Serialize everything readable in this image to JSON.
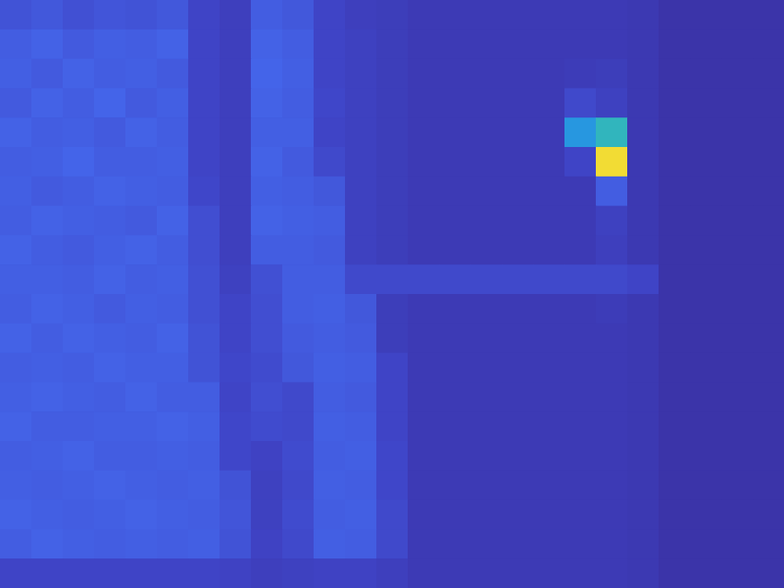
{
  "chart_data": {
    "type": "heatmap",
    "tick_labels": false,
    "color_range": [
      0,
      1
    ],
    "cells": [
      [
        0.16,
        0.18,
        0.15,
        0.17,
        0.16,
        0.18,
        0.1,
        0.07,
        0.2,
        0.18,
        0.1,
        0.07,
        0.06,
        0.04,
        0.04,
        0.04,
        0.04,
        0.04,
        0.04,
        0.04,
        0.03,
        0,
        0,
        0,
        0
      ],
      [
        0.2,
        0.22,
        0.19,
        0.21,
        0.2,
        0.22,
        0.1,
        0.07,
        0.22,
        0.2,
        0.1,
        0.08,
        0.06,
        0.04,
        0.04,
        0.04,
        0.04,
        0.04,
        0.04,
        0.04,
        0.03,
        0,
        0,
        0,
        0
      ],
      [
        0.21,
        0.19,
        0.22,
        0.2,
        0.21,
        0.19,
        0.1,
        0.07,
        0.23,
        0.21,
        0.1,
        0.08,
        0.06,
        0.04,
        0.04,
        0.04,
        0.04,
        0.04,
        0.05,
        0.06,
        0.03,
        0,
        0,
        0,
        0
      ],
      [
        0.19,
        0.22,
        0.2,
        0.23,
        0.19,
        0.21,
        0.1,
        0.07,
        0.22,
        0.2,
        0.11,
        0.08,
        0.06,
        0.04,
        0.04,
        0.04,
        0.04,
        0.04,
        0.12,
        0.08,
        0.03,
        0,
        0,
        0,
        0
      ],
      [
        0.22,
        0.2,
        0.21,
        0.19,
        0.22,
        0.2,
        0.1,
        0.07,
        0.21,
        0.21,
        0.1,
        0.08,
        0.06,
        0.04,
        0.04,
        0.04,
        0.04,
        0.04,
        0.45,
        0.6,
        0.03,
        0,
        0,
        0,
        0
      ],
      [
        0.2,
        0.21,
        0.23,
        0.2,
        0.2,
        0.21,
        0.1,
        0.07,
        0.22,
        0.19,
        0.12,
        0.08,
        0.06,
        0.04,
        0.04,
        0.04,
        0.04,
        0.04,
        0.1,
        1.0,
        0.03,
        0,
        0,
        0,
        0
      ],
      [
        0.21,
        0.19,
        0.2,
        0.22,
        0.21,
        0.2,
        0.11,
        0.07,
        0.21,
        0.2,
        0.18,
        0.08,
        0.06,
        0.04,
        0.04,
        0.04,
        0.04,
        0.04,
        0.04,
        0.2,
        0.03,
        0,
        0,
        0,
        0
      ],
      [
        0.2,
        0.22,
        0.21,
        0.2,
        0.19,
        0.22,
        0.14,
        0.07,
        0.22,
        0.21,
        0.2,
        0.08,
        0.06,
        0.04,
        0.04,
        0.04,
        0.04,
        0.04,
        0.04,
        0.08,
        0.03,
        0,
        0,
        0,
        0
      ],
      [
        0.22,
        0.2,
        0.19,
        0.21,
        0.22,
        0.2,
        0.14,
        0.07,
        0.2,
        0.2,
        0.19,
        0.08,
        0.06,
        0.04,
        0.04,
        0.04,
        0.04,
        0.04,
        0.04,
        0.07,
        0.03,
        0,
        0,
        0,
        0
      ],
      [
        0.21,
        0.21,
        0.2,
        0.22,
        0.2,
        0.21,
        0.15,
        0.08,
        0.15,
        0.2,
        0.2,
        0.12,
        0.12,
        0.12,
        0.12,
        0.12,
        0.12,
        0.12,
        0.12,
        0.12,
        0.1,
        0,
        0,
        0,
        0
      ],
      [
        0.2,
        0.22,
        0.21,
        0.19,
        0.21,
        0.2,
        0.15,
        0.1,
        0.14,
        0.2,
        0.21,
        0.18,
        0.06,
        0.04,
        0.04,
        0.04,
        0.04,
        0.04,
        0.04,
        0.05,
        0.03,
        0,
        0,
        0,
        0
      ],
      [
        0.22,
        0.2,
        0.22,
        0.21,
        0.2,
        0.22,
        0.16,
        0.1,
        0.14,
        0.19,
        0.2,
        0.19,
        0.06,
        0.04,
        0.04,
        0.04,
        0.04,
        0.04,
        0.04,
        0.04,
        0.03,
        0,
        0,
        0,
        0
      ],
      [
        0.2,
        0.21,
        0.2,
        0.22,
        0.21,
        0.21,
        0.16,
        0.11,
        0.13,
        0.18,
        0.21,
        0.2,
        0.1,
        0.04,
        0.04,
        0.04,
        0.04,
        0.04,
        0.04,
        0.04,
        0.03,
        0,
        0,
        0,
        0
      ],
      [
        0.21,
        0.22,
        0.21,
        0.2,
        0.22,
        0.2,
        0.2,
        0.1,
        0.14,
        0.12,
        0.2,
        0.19,
        0.1,
        0.04,
        0.04,
        0.04,
        0.04,
        0.04,
        0.04,
        0.04,
        0.03,
        0,
        0,
        0,
        0
      ],
      [
        0.22,
        0.2,
        0.2,
        0.21,
        0.21,
        0.22,
        0.21,
        0.11,
        0.13,
        0.12,
        0.21,
        0.2,
        0.1,
        0.04,
        0.04,
        0.04,
        0.04,
        0.04,
        0.04,
        0.04,
        0.03,
        0,
        0,
        0,
        0
      ],
      [
        0.2,
        0.21,
        0.22,
        0.2,
        0.2,
        0.21,
        0.2,
        0.11,
        0.09,
        0.13,
        0.2,
        0.21,
        0.11,
        0.04,
        0.04,
        0.04,
        0.04,
        0.04,
        0.04,
        0.04,
        0.03,
        0,
        0,
        0,
        0
      ],
      [
        0.21,
        0.2,
        0.21,
        0.22,
        0.21,
        0.2,
        0.21,
        0.16,
        0.08,
        0.12,
        0.21,
        0.2,
        0.11,
        0.04,
        0.04,
        0.04,
        0.04,
        0.04,
        0.04,
        0.04,
        0.03,
        0,
        0,
        0,
        0
      ],
      [
        0.22,
        0.21,
        0.2,
        0.21,
        0.22,
        0.21,
        0.2,
        0.17,
        0.08,
        0.13,
        0.2,
        0.21,
        0.12,
        0.04,
        0.04,
        0.04,
        0.04,
        0.04,
        0.04,
        0.04,
        0.03,
        0,
        0,
        0,
        0
      ],
      [
        0.2,
        0.22,
        0.21,
        0.2,
        0.21,
        0.2,
        0.21,
        0.16,
        0.09,
        0.12,
        0.21,
        0.2,
        0.12,
        0.04,
        0.04,
        0.04,
        0.04,
        0.04,
        0.04,
        0.04,
        0.03,
        0,
        0,
        0,
        0
      ],
      [
        0.1,
        0.1,
        0.1,
        0.1,
        0.1,
        0.1,
        0.1,
        0.09,
        0.07,
        0.08,
        0.09,
        0.09,
        0.07,
        0.04,
        0.04,
        0.04,
        0.04,
        0.04,
        0.04,
        0.04,
        0.03,
        0,
        0,
        0,
        0
      ]
    ]
  }
}
